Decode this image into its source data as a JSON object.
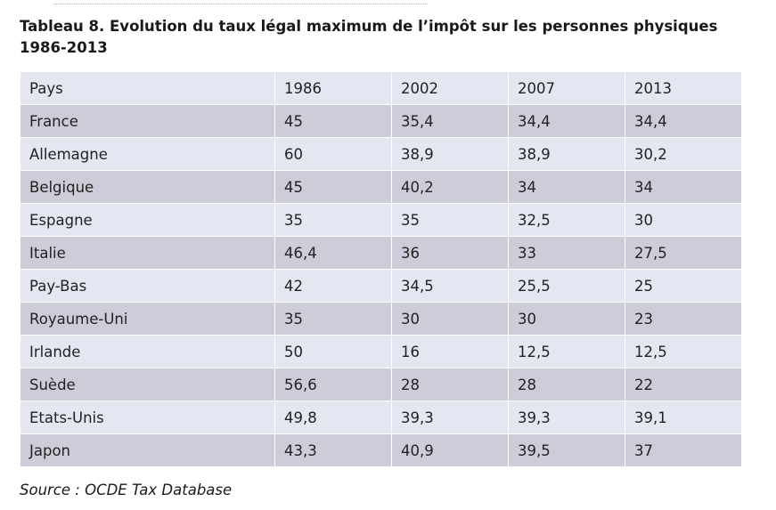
{
  "title": "Tableau 8. Evolution du taux légal maximum de l’impôt sur les personnes physiques 1986-2013",
  "table": {
    "headers": [
      "Pays",
      "1986",
      "2002",
      "2007",
      "2013"
    ],
    "rows": [
      [
        "France",
        "45",
        "35,4",
        "34,4",
        "34,4"
      ],
      [
        "Allemagne",
        "60",
        "38,9",
        "38,9",
        "30,2"
      ],
      [
        "Belgique",
        "45",
        "40,2",
        "34",
        "34"
      ],
      [
        "Espagne",
        "35",
        "35",
        "32,5",
        "30"
      ],
      [
        "Italie",
        "46,4",
        "36",
        "33",
        "27,5"
      ],
      [
        "Pay-Bas",
        "42",
        "34,5",
        "25,5",
        "25"
      ],
      [
        "Royaume-Uni",
        "35",
        "30",
        "30",
        "23"
      ],
      [
        "Irlande",
        "50",
        "16",
        "12,5",
        "12,5"
      ],
      [
        "Suède",
        "56,6",
        "28",
        "28",
        "22"
      ],
      [
        "Etats-Unis",
        "49,8",
        "39,3",
        "39,3",
        "39,1"
      ],
      [
        "Japon",
        "43,3",
        "40,9",
        "39,5",
        "37"
      ]
    ]
  },
  "source": "Source : OCDE Tax Database"
}
